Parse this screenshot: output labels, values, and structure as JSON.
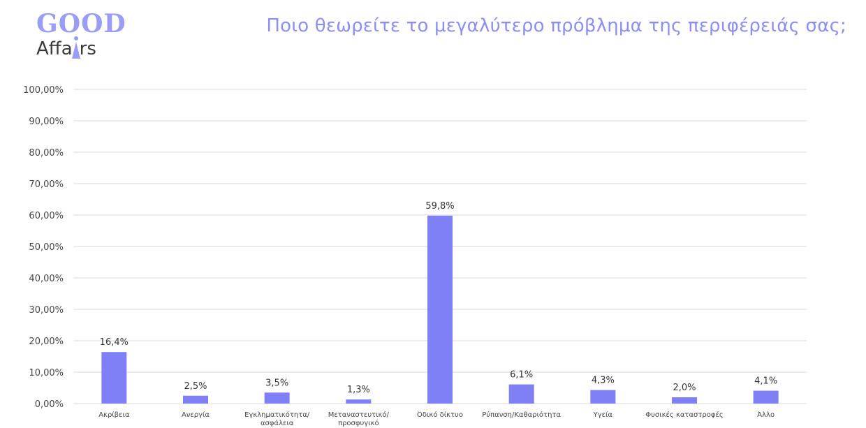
{
  "logo": {
    "line1": "GOOD",
    "line2_a": "Affa",
    "line2_b": "rs"
  },
  "colors": {
    "bar": "#7f80f5",
    "title": "#8d8ef2",
    "logo": "#9b9cf6",
    "grid": "#d9d9d9"
  },
  "chart_data": {
    "type": "bar",
    "title": "Ποιο θεωρείτε το μεγαλύτερο πρόβλημα της περιφέρειάς σας;",
    "categories": [
      [
        "Ακρίβεια"
      ],
      [
        "Ανεργία"
      ],
      [
        "Εγκληματικότητα/",
        "ασφάλεια"
      ],
      [
        "Μεταναστευτικό/",
        "προσφυγικό"
      ],
      [
        "Οδικό δίκτυο"
      ],
      [
        "Ρύπανση/Καθαριότητα"
      ],
      [
        "Υγεία"
      ],
      [
        "Φυσικές καταστροφές"
      ],
      [
        "Άλλο"
      ]
    ],
    "values": [
      16.4,
      2.5,
      3.5,
      1.3,
      59.8,
      6.1,
      4.3,
      2.0,
      4.1
    ],
    "data_labels": [
      "16,4%",
      "2,5%",
      "3,5%",
      "1,3%",
      "59,8%",
      "6,1%",
      "4,3%",
      "2,0%",
      "4,1%"
    ],
    "y_ticks": [
      0,
      10,
      20,
      30,
      40,
      50,
      60,
      70,
      80,
      90,
      100
    ],
    "y_tick_labels": [
      "0,00%",
      "10,00%",
      "20,00%",
      "30,00%",
      "40,00%",
      "50,00%",
      "60,00%",
      "70,00%",
      "80,00%",
      "90,00%",
      "100,00%"
    ],
    "ylim": [
      0,
      100
    ],
    "grid": true,
    "legend": "none"
  }
}
